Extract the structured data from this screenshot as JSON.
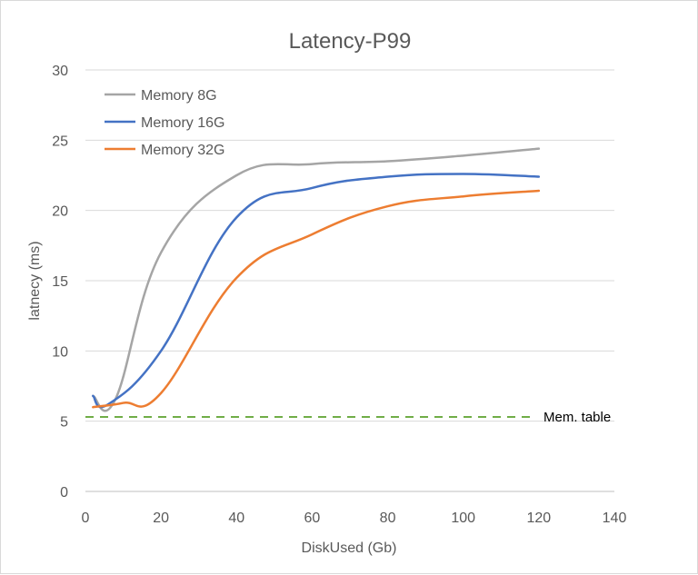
{
  "chart_data": {
    "type": "line",
    "title": "Latency-P99",
    "xlabel": "DiskUsed (Gb)",
    "ylabel": "latnecy (ms)",
    "xlim": [
      0,
      140
    ],
    "ylim": [
      0,
      30
    ],
    "xticks": [
      0,
      20,
      40,
      60,
      80,
      100,
      120,
      140
    ],
    "yticks": [
      0,
      5,
      10,
      15,
      20,
      25,
      30
    ],
    "grid": "horizontal",
    "legend_position": "top-left",
    "series": [
      {
        "name": "Memory 8G",
        "color": "#a5a5a5",
        "x": [
          2,
          8,
          20,
          40,
          60,
          80,
          100,
          120
        ],
        "y": [
          6.8,
          6.6,
          17.0,
          22.5,
          23.3,
          23.5,
          23.9,
          24.4
        ]
      },
      {
        "name": "Memory 16G",
        "color": "#4472c4",
        "x": [
          2,
          6,
          20,
          40,
          60,
          80,
          100,
          120
        ],
        "y": [
          6.8,
          6.2,
          10.0,
          19.5,
          21.6,
          22.4,
          22.6,
          22.4
        ]
      },
      {
        "name": "Memory 32G",
        "color": "#ed7d31",
        "x": [
          2,
          10,
          20,
          40,
          60,
          80,
          100,
          120
        ],
        "y": [
          6.0,
          6.3,
          7.0,
          15.2,
          18.3,
          20.3,
          21.0,
          21.4
        ]
      }
    ],
    "reference_line": {
      "label": "Mem. table",
      "y": 5.3,
      "color": "#70ad47",
      "style": "dashed"
    }
  }
}
